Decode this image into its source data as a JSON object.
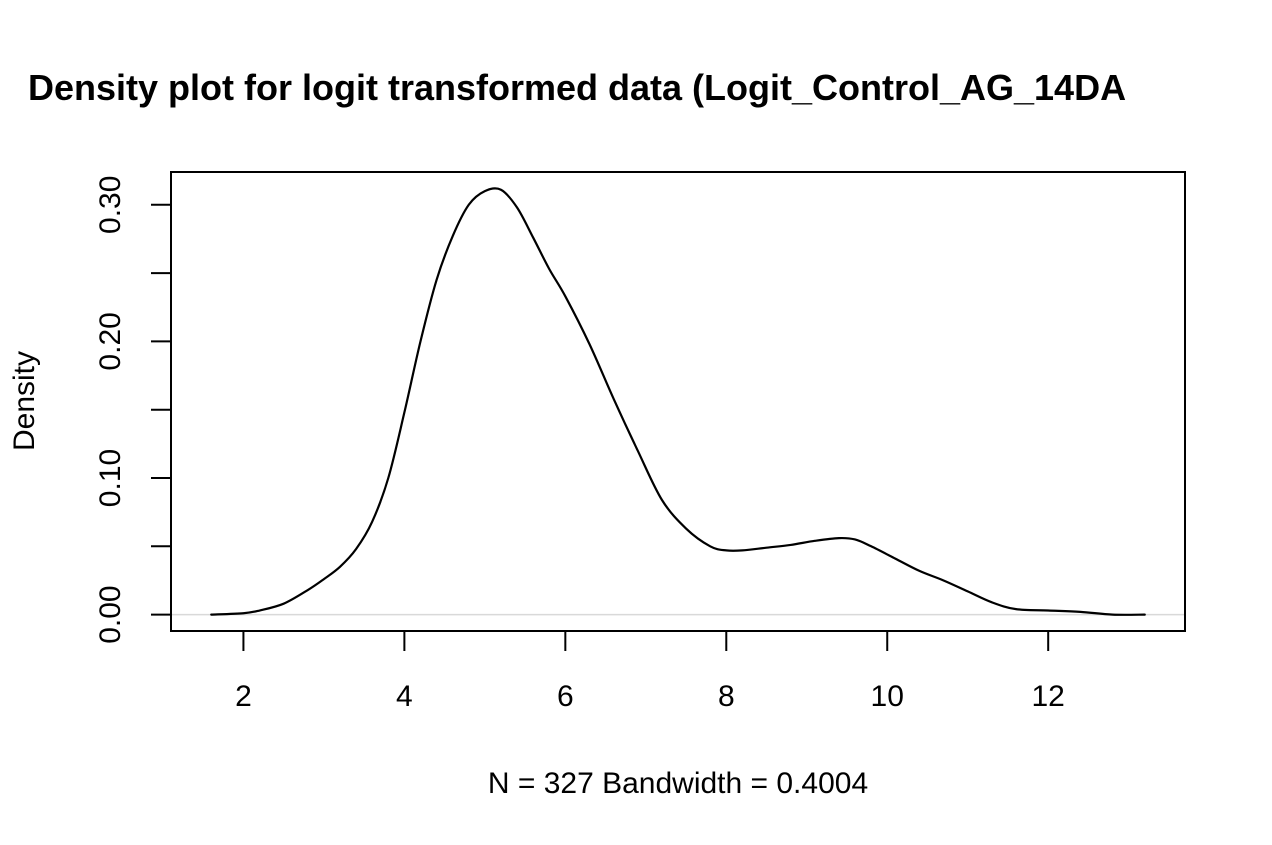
{
  "chart_data": {
    "type": "line",
    "title": "Density plot for logit transformed data (Logit_Control_AG_14DA",
    "xlabel": "N = 327   Bandwidth = 0.4004",
    "ylabel": "Density",
    "xlim": [
      1.1,
      13.7
    ],
    "ylim": [
      -0.012,
      0.324
    ],
    "x_ticks": [
      2,
      4,
      6,
      8,
      10,
      12
    ],
    "x_tick_labels": [
      "2",
      "4",
      "6",
      "8",
      "10",
      "12"
    ],
    "y_ticks": [
      0.0,
      0.05,
      0.1,
      0.15,
      0.2,
      0.25,
      0.3
    ],
    "y_tick_labels": [
      "0.00",
      "",
      "0.10",
      "",
      "0.20",
      "",
      "0.30"
    ],
    "grid": false,
    "zero_line": true,
    "colors": {
      "line": "#000000",
      "zero_line": "#d9d9d9"
    },
    "series": [
      {
        "x": [
          1.6,
          2.0,
          2.2,
          2.5,
          2.8,
          3.0,
          3.2,
          3.4,
          3.6,
          3.8,
          4.0,
          4.2,
          4.4,
          4.6,
          4.8,
          5.0,
          5.2,
          5.4,
          5.6,
          5.8,
          6.0,
          6.3,
          6.6,
          6.9,
          7.2,
          7.5,
          7.8,
          8.0,
          8.2,
          8.5,
          8.8,
          9.1,
          9.4,
          9.6,
          9.8,
          10.1,
          10.4,
          10.7,
          11.0,
          11.3,
          11.6,
          12.0,
          12.4,
          12.8,
          13.2
        ],
        "y": [
          0.0,
          0.001,
          0.003,
          0.008,
          0.018,
          0.026,
          0.035,
          0.048,
          0.068,
          0.1,
          0.148,
          0.2,
          0.245,
          0.277,
          0.3,
          0.31,
          0.311,
          0.298,
          0.276,
          0.253,
          0.233,
          0.198,
          0.158,
          0.12,
          0.084,
          0.063,
          0.05,
          0.047,
          0.047,
          0.049,
          0.051,
          0.054,
          0.056,
          0.055,
          0.05,
          0.041,
          0.032,
          0.025,
          0.017,
          0.009,
          0.004,
          0.003,
          0.002,
          0.0,
          0.0
        ]
      }
    ]
  }
}
